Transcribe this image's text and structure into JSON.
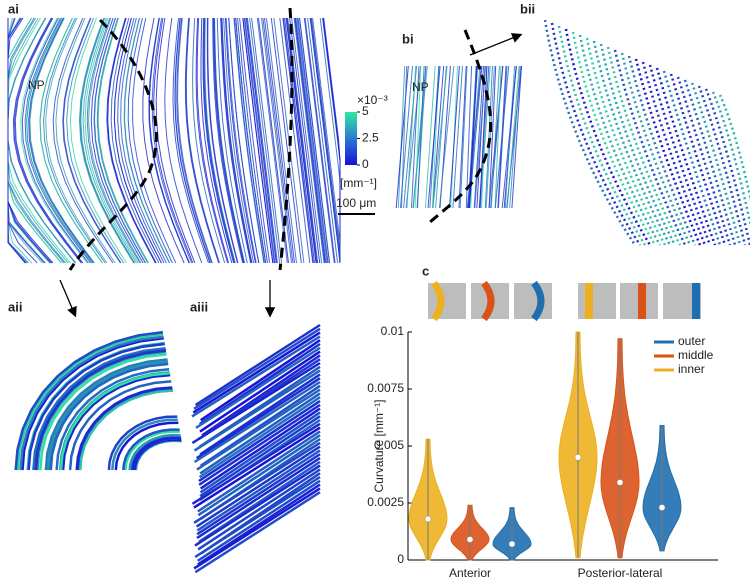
{
  "panels": {
    "ai": "ai",
    "aii": "aii",
    "aiii": "aiii",
    "bi": "bi",
    "bii": "bii",
    "c": "c",
    "np_a": "NP",
    "np_b": "NP",
    "scale_bar": "100 μm"
  },
  "colorbar": {
    "clim": [
      0,
      5
    ],
    "ticks": [
      0,
      2.5,
      5
    ],
    "exponent_label": "×10⁻³",
    "unit": "[mm⁻¹]"
  },
  "chart_data": {
    "type": "violin",
    "ylabel": "Curvature [mm⁻¹]",
    "categories": [
      "Anterior",
      "Posterior-lateral"
    ],
    "ylim": [
      0,
      0.01
    ],
    "yticks": [
      0,
      0.0025,
      0.005,
      0.0075,
      0.01
    ],
    "legend": "top-right",
    "series": [
      {
        "name": "outer",
        "color": "#1f6fb0",
        "values": [
          0.0007,
          0.0023
        ],
        "min": [
          0.0,
          0.0004
        ],
        "max": [
          0.0023,
          0.0059
        ]
      },
      {
        "name": "middle",
        "color": "#d95319",
        "values": [
          0.0009,
          0.0034
        ],
        "min": [
          0.0,
          0.0001
        ],
        "max": [
          0.0024,
          0.0097
        ]
      },
      {
        "name": "inner",
        "color": "#edb120",
        "values": [
          0.0018,
          0.0045
        ],
        "min": [
          0.0,
          0.0001
        ],
        "max": [
          0.0053,
          0.01
        ]
      }
    ]
  }
}
